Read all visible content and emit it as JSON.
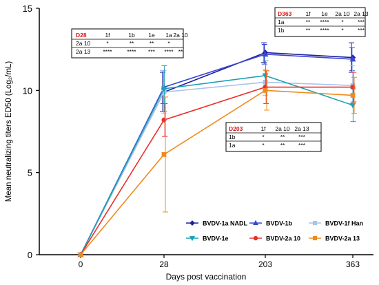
{
  "chart_data": {
    "type": "line",
    "title": "",
    "xlabel": "Days post vaccination",
    "ylabel": "Mean neutralizing titers ED50 (Log₂/mL)",
    "x": [
      "0",
      "28",
      "203",
      "363"
    ],
    "ylim": [
      0,
      15
    ],
    "yticks": [
      0,
      5,
      10,
      15
    ],
    "grid": false,
    "legend_position": "bottom-right",
    "series": [
      {
        "name": "BVDV-1a NADL",
        "color": "#1f1f9e",
        "marker": "diamond",
        "values": [
          0,
          9.9,
          12.3,
          12.0
        ],
        "err": [
          0,
          1.2,
          0.6,
          0.9
        ]
      },
      {
        "name": "BVDV-1b",
        "color": "#3a46d6",
        "marker": "triangle",
        "values": [
          0,
          10.2,
          12.2,
          11.9
        ],
        "err": [
          0,
          1.0,
          0.6,
          0.7
        ]
      },
      {
        "name": "BVDV-1f Han",
        "color": "#a9c3ec",
        "marker": "square",
        "values": [
          0,
          9.9,
          10.5,
          10.3
        ],
        "err": [
          0,
          1.3,
          0.8,
          1.2
        ]
      },
      {
        "name": "BVDV-1e",
        "color": "#1fa0b5",
        "marker": "triangle-down",
        "values": [
          0,
          10.1,
          10.9,
          9.1
        ],
        "err": [
          0,
          1.4,
          0.9,
          1.0
        ]
      },
      {
        "name": "BVDV-2a 10",
        "color": "#e8302b",
        "marker": "circle",
        "values": [
          0,
          8.2,
          10.2,
          10.2
        ],
        "err": [
          0,
          1.0,
          1.0,
          0.9
        ]
      },
      {
        "name": "BVDV-2a 13",
        "color": "#f08a1c",
        "marker": "square",
        "values": [
          0,
          6.1,
          10.0,
          9.7
        ],
        "err": [
          0,
          3.5,
          1.2,
          1.1
        ]
      }
    ],
    "annotations": [
      {
        "id": "D28",
        "header": [
          "D28",
          "1f",
          "1b",
          "1e",
          "1a",
          "2a 10"
        ],
        "rows": [
          [
            "2a 10",
            "*",
            "**",
            "**",
            "*",
            ""
          ],
          [
            "2a 13",
            "****",
            "****",
            "***",
            "****",
            "**"
          ]
        ]
      },
      {
        "id": "D363",
        "header": [
          "D363",
          "1f",
          "1e",
          "2a 10",
          "2a 13"
        ],
        "rows": [
          [
            "1a",
            "**",
            "****",
            "*",
            "***"
          ],
          [
            "1b",
            "**",
            "****",
            "*",
            "***"
          ]
        ]
      },
      {
        "id": "D203",
        "header": [
          "D203",
          "1f",
          "2a 10",
          "2a 13"
        ],
        "rows": [
          [
            "1b",
            "*",
            "**",
            "***"
          ],
          [
            "1a",
            "*",
            "**",
            "***"
          ]
        ]
      }
    ]
  }
}
